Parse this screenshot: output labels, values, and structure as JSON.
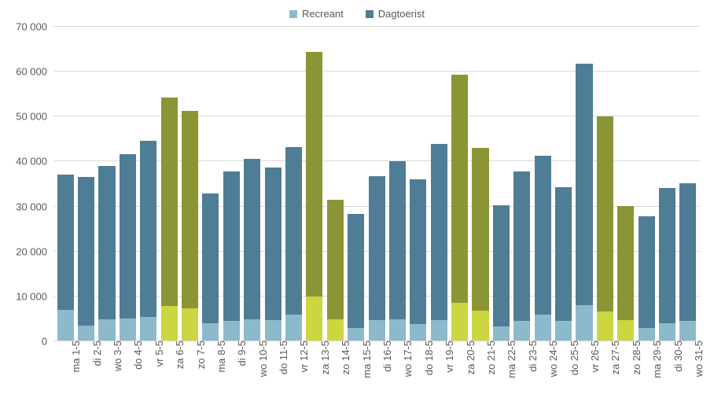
{
  "chart": {
    "type": "bar-stacked",
    "legend": [
      {
        "label": "Recreant",
        "color_weekday": "#8dbacb",
        "color_weekend": "#cbd641"
      },
      {
        "label": "Dagtoerist",
        "color_weekday": "#4f7d96",
        "color_weekend": "#8b9536"
      }
    ],
    "ylim": [
      0,
      70000
    ],
    "ytick_step": 10000,
    "background_color": "#ffffff",
    "grid_color": "#d9d9d9",
    "axis_font_color": "#595959",
    "axis_fontsize": 13,
    "bar_width": 0.8,
    "categories": [
      {
        "label": "ma 1-5",
        "weekend": false,
        "recreant": 6800,
        "dagtoerist": 30200
      },
      {
        "label": "di 2-5",
        "weekend": false,
        "recreant": 3400,
        "dagtoerist": 33000
      },
      {
        "label": "wo 3-5",
        "weekend": false,
        "recreant": 4700,
        "dagtoerist": 34200
      },
      {
        "label": "do 4-5",
        "weekend": false,
        "recreant": 4900,
        "dagtoerist": 36500
      },
      {
        "label": "vr 5-5",
        "weekend": false,
        "recreant": 5200,
        "dagtoerist": 39200
      },
      {
        "label": "za 6-5",
        "weekend": true,
        "recreant": 7700,
        "dagtoerist": 46300
      },
      {
        "label": "zo 7-5",
        "weekend": true,
        "recreant": 7200,
        "dagtoerist": 43900
      },
      {
        "label": "ma 8-5",
        "weekend": false,
        "recreant": 3900,
        "dagtoerist": 28800
      },
      {
        "label": "di 9-5",
        "weekend": false,
        "recreant": 4300,
        "dagtoerist": 33300
      },
      {
        "label": "wo 10-5",
        "weekend": false,
        "recreant": 4800,
        "dagtoerist": 35700
      },
      {
        "label": "do 11-5",
        "weekend": false,
        "recreant": 4600,
        "dagtoerist": 33900
      },
      {
        "label": "vr 12-5",
        "weekend": false,
        "recreant": 5800,
        "dagtoerist": 37200
      },
      {
        "label": "za 13-5",
        "weekend": true,
        "recreant": 9800,
        "dagtoerist": 54400
      },
      {
        "label": "zo 14-5",
        "weekend": true,
        "recreant": 4700,
        "dagtoerist": 26600
      },
      {
        "label": "ma 15-5",
        "weekend": false,
        "recreant": 2800,
        "dagtoerist": 25400
      },
      {
        "label": "di 16-5",
        "weekend": false,
        "recreant": 4600,
        "dagtoerist": 31900
      },
      {
        "label": "wo 17-5",
        "weekend": false,
        "recreant": 4800,
        "dagtoerist": 35100
      },
      {
        "label": "do 18-5",
        "weekend": false,
        "recreant": 3600,
        "dagtoerist": 32200
      },
      {
        "label": "vr 19-5",
        "weekend": false,
        "recreant": 4500,
        "dagtoerist": 39200
      },
      {
        "label": "za 20-5",
        "weekend": true,
        "recreant": 8400,
        "dagtoerist": 50800
      },
      {
        "label": "zo 21-5",
        "weekend": true,
        "recreant": 6700,
        "dagtoerist": 36100
      },
      {
        "label": "ma 22-5",
        "weekend": false,
        "recreant": 3100,
        "dagtoerist": 27000
      },
      {
        "label": "di 23-5",
        "weekend": false,
        "recreant": 4400,
        "dagtoerist": 33200
      },
      {
        "label": "wo 24-5",
        "weekend": false,
        "recreant": 5800,
        "dagtoerist": 35400
      },
      {
        "label": "do 25-5",
        "weekend": false,
        "recreant": 4300,
        "dagtoerist": 29800
      },
      {
        "label": "vr 26-5",
        "weekend": false,
        "recreant": 7900,
        "dagtoerist": 53700
      },
      {
        "label": "za 27-5",
        "weekend": true,
        "recreant": 6500,
        "dagtoerist": 43400
      },
      {
        "label": "zo 28-5",
        "weekend": true,
        "recreant": 4500,
        "dagtoerist": 25500
      },
      {
        "label": "ma 29-5",
        "weekend": false,
        "recreant": 2800,
        "dagtoerist": 24900
      },
      {
        "label": "di 30-5",
        "weekend": false,
        "recreant": 3800,
        "dagtoerist": 30100
      },
      {
        "label": "wo 31-5",
        "weekend": false,
        "recreant": 4300,
        "dagtoerist": 30700
      }
    ]
  }
}
